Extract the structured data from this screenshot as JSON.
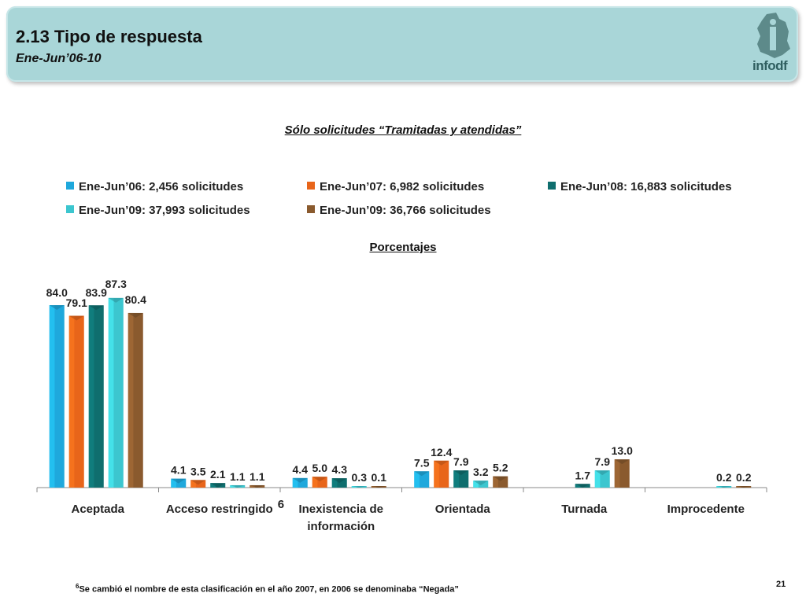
{
  "header": {
    "title": "2.13 Tipo de respuesta",
    "subtitle": "Ene-Jun’06-10",
    "logo_text": "infodf"
  },
  "chart_subtitle": "Sólo solicitudes “Tramitadas y atendidas”",
  "percent_label": "Porcentajes",
  "footnote": {
    "marker": "6",
    "text": "Se cambió el nombre de esta clasificación en el  año 2007, en 2006 se denominaba “Negada”"
  },
  "page_number": "21",
  "chart_data": {
    "type": "bar",
    "title": "",
    "xlabel": "",
    "ylabel": "",
    "ylim": [
      0,
      100
    ],
    "grid": false,
    "legend_position": "top",
    "categories": [
      "Aceptada",
      "Acceso restringido",
      "Inexistencia de información",
      "Orientada",
      "Turnada",
      "Improcedente"
    ],
    "category_lines": [
      [
        "Aceptada"
      ],
      [
        "Acceso restringido"
      ],
      [
        "Inexistencia de",
        "información"
      ],
      [
        "Orientada"
      ],
      [
        "Turnada"
      ],
      [
        "Improcedente"
      ]
    ],
    "category_footnote": {
      "category": "Acceso restringido",
      "marker": "6"
    },
    "series": [
      {
        "name": "Ene-Jun’06: 2,456 solicitudes",
        "color": "#1fa8dc",
        "values": [
          84.0,
          4.1,
          4.4,
          7.5,
          null,
          null
        ],
        "labels": [
          "84.0",
          "4.1",
          "4.4",
          "7.5",
          "",
          ""
        ]
      },
      {
        "name": "Ene-Jun’07: 6,982 solicitudes",
        "color": "#e8651a",
        "values": [
          79.1,
          3.5,
          5.0,
          12.4,
          null,
          null
        ],
        "labels": [
          "79.1",
          "3.5",
          "5.0",
          "12.4",
          "",
          ""
        ]
      },
      {
        "name": "Ene-Jun’08: 16,883 solicitudes",
        "color": "#0f6e6e",
        "values": [
          83.9,
          2.1,
          4.3,
          7.9,
          1.7,
          null
        ],
        "labels": [
          "83.9",
          "2.1",
          "4.3",
          "7.9",
          "1.7",
          ""
        ]
      },
      {
        "name": "Ene-Jun’09: 37,993 solicitudes",
        "color": "#3cc6cf",
        "values": [
          87.3,
          1.1,
          0.3,
          3.2,
          7.9,
          0.2
        ],
        "labels": [
          "87.3",
          "1.1",
          "0.3",
          "3.2",
          "7.9",
          "0.2"
        ]
      },
      {
        "name": "Ene-Jun’09: 36,766 solicitudes",
        "color": "#8a5a2e",
        "values": [
          80.4,
          1.1,
          0.1,
          5.2,
          13.0,
          0.2
        ],
        "labels": [
          "80.4",
          "1.1",
          "0.1",
          "5.2",
          "13.0",
          "0.2"
        ]
      }
    ]
  }
}
